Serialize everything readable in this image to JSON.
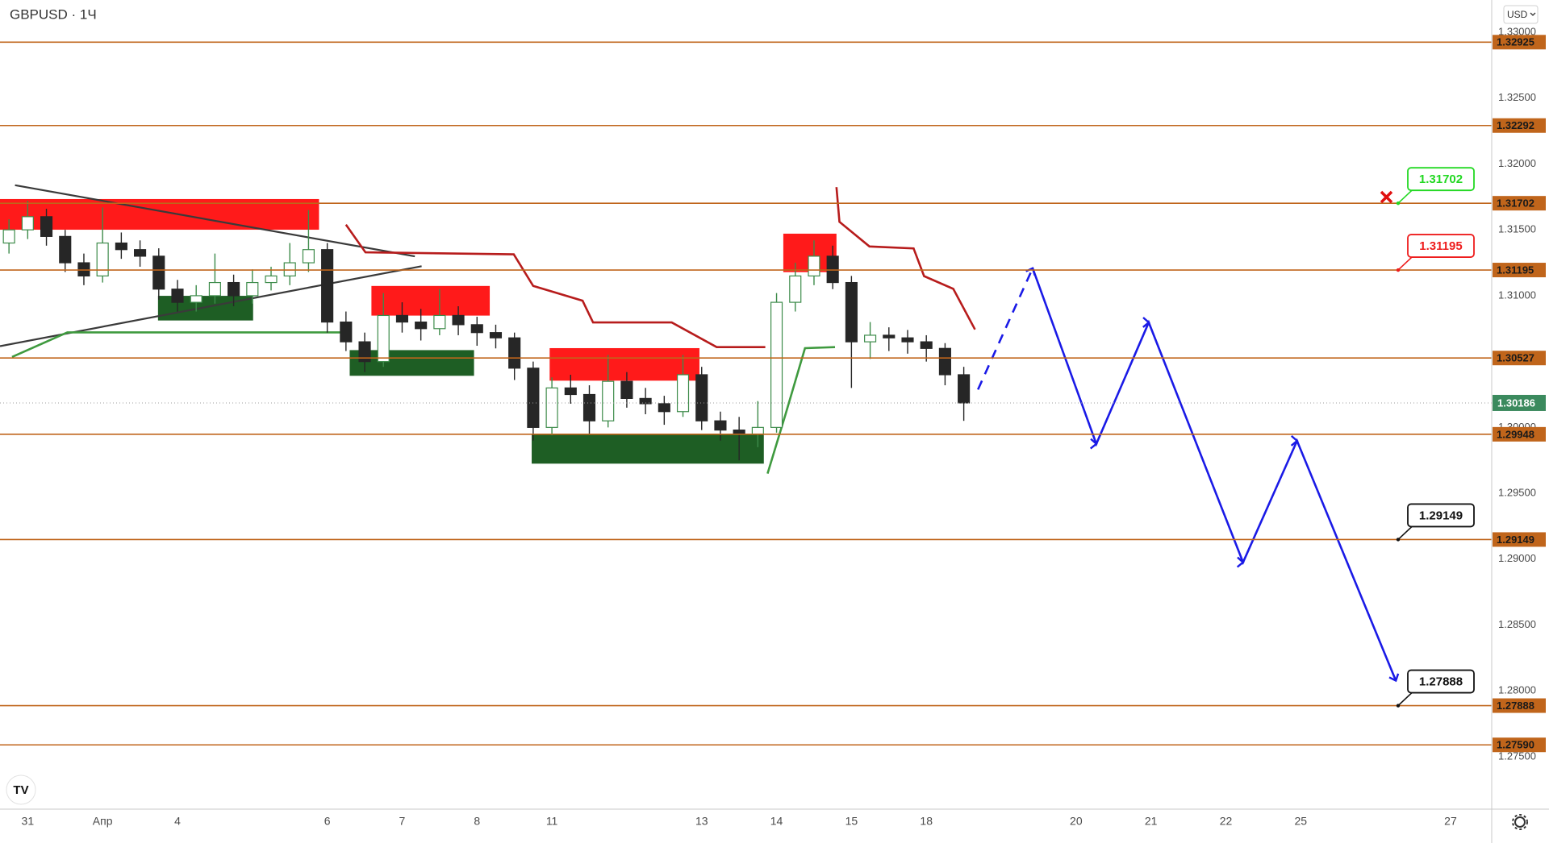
{
  "chart_data": {
    "type": "candlestick",
    "title": "GBPUSD · 1Ч",
    "currency": "USD",
    "up_color": "#3d8b4a",
    "down_color": "#262626",
    "xlim": [
      -0.37,
      19.55
    ],
    "ylim": [
      1.27102,
      1.33245
    ],
    "xticks": [
      {
        "value": 0,
        "label": "31"
      },
      {
        "value": 1,
        "label": "Апр"
      },
      {
        "value": 2,
        "label": "4"
      },
      {
        "value": 4,
        "label": "6"
      },
      {
        "value": 5,
        "label": "7"
      },
      {
        "value": 6,
        "label": "8"
      },
      {
        "value": 7,
        "label": "11"
      },
      {
        "value": 9,
        "label": "13"
      },
      {
        "value": 10,
        "label": "14"
      },
      {
        "value": 11,
        "label": "15"
      },
      {
        "value": 12,
        "label": "18"
      },
      {
        "value": 14,
        "label": "20"
      },
      {
        "value": 15,
        "label": "21"
      },
      {
        "value": 16,
        "label": "22"
      },
      {
        "value": 17,
        "label": "25"
      },
      {
        "value": 19,
        "label": "27"
      }
    ],
    "yticks": [
      {
        "value": 1.275,
        "label": "1.27500"
      },
      {
        "value": 1.28,
        "label": "1.28000"
      },
      {
        "value": 1.285,
        "label": "1.28500"
      },
      {
        "value": 1.29,
        "label": "1.29000"
      },
      {
        "value": 1.295,
        "label": "1.29500"
      },
      {
        "value": 1.3,
        "label": "1.30000"
      },
      {
        "value": 1.305,
        "label": "1.30500"
      },
      {
        "value": 1.31,
        "label": "1.31000"
      },
      {
        "value": 1.315,
        "label": "1.31500"
      },
      {
        "value": 1.32,
        "label": "1.32000"
      },
      {
        "value": 1.325,
        "label": "1.32500"
      },
      {
        "value": 1.33,
        "label": "1.33000"
      }
    ],
    "x": [
      -0.25,
      0,
      0.25,
      0.5,
      0.75,
      1,
      1.25,
      1.5,
      1.75,
      2,
      2.25,
      2.5,
      2.75,
      3,
      3.25,
      3.5,
      3.75,
      4,
      4.25,
      4.5,
      4.75,
      5,
      5.25,
      5.5,
      5.75,
      6,
      6.25,
      6.5,
      6.75,
      7,
      7.25,
      7.5,
      7.75,
      8,
      8.25,
      8.5,
      8.75,
      9,
      9.25,
      9.5,
      9.75,
      10,
      10.25,
      10.5,
      10.75,
      11,
      11.25,
      11.5,
      11.75,
      12,
      12.25,
      12.5
    ],
    "ohlc": [
      [
        1.314,
        1.3158,
        1.3132,
        1.315
      ],
      [
        1.315,
        1.3172,
        1.3143,
        1.316
      ],
      [
        1.316,
        1.3166,
        1.3138,
        1.3145
      ],
      [
        1.3145,
        1.315,
        1.3118,
        1.3125
      ],
      [
        1.3125,
        1.3132,
        1.3108,
        1.3115
      ],
      [
        1.3115,
        1.3167,
        1.311,
        1.314
      ],
      [
        1.314,
        1.3148,
        1.3128,
        1.3135
      ],
      [
        1.3135,
        1.3142,
        1.3122,
        1.313
      ],
      [
        1.313,
        1.3136,
        1.3097,
        1.3105
      ],
      [
        1.3105,
        1.3112,
        1.3088,
        1.3095
      ],
      [
        1.3095,
        1.3108,
        1.3088,
        1.31
      ],
      [
        1.31,
        1.3132,
        1.3094,
        1.311
      ],
      [
        1.311,
        1.3116,
        1.3092,
        1.31
      ],
      [
        1.31,
        1.312,
        1.3094,
        1.311
      ],
      [
        1.311,
        1.3122,
        1.3104,
        1.3115
      ],
      [
        1.3115,
        1.314,
        1.3108,
        1.3125
      ],
      [
        1.3125,
        1.3165,
        1.3118,
        1.3135
      ],
      [
        1.3135,
        1.314,
        1.3072,
        1.308
      ],
      [
        1.308,
        1.3088,
        1.3058,
        1.3065
      ],
      [
        1.3065,
        1.3072,
        1.3042,
        1.305
      ],
      [
        1.305,
        1.3102,
        1.3046,
        1.3085
      ],
      [
        1.3085,
        1.3095,
        1.3072,
        1.308
      ],
      [
        1.308,
        1.309,
        1.3066,
        1.3075
      ],
      [
        1.3075,
        1.3105,
        1.307,
        1.3085
      ],
      [
        1.3085,
        1.3092,
        1.307,
        1.3078
      ],
      [
        1.3078,
        1.3084,
        1.3062,
        1.3072
      ],
      [
        1.3072,
        1.3078,
        1.306,
        1.3068
      ],
      [
        1.3068,
        1.3072,
        1.3036,
        1.3045
      ],
      [
        1.3045,
        1.305,
        1.299,
        1.3
      ],
      [
        1.3,
        1.3038,
        1.2994,
        1.303
      ],
      [
        1.303,
        1.304,
        1.3018,
        1.3025
      ],
      [
        1.3025,
        1.3032,
        1.2995,
        1.3005
      ],
      [
        1.3005,
        1.3055,
        1.3,
        1.3035
      ],
      [
        1.3035,
        1.3042,
        1.3015,
        1.3022
      ],
      [
        1.3022,
        1.303,
        1.301,
        1.3018
      ],
      [
        1.3018,
        1.3024,
        1.3002,
        1.3012
      ],
      [
        1.3012,
        1.3055,
        1.3008,
        1.304
      ],
      [
        1.304,
        1.3046,
        1.2998,
        1.3005
      ],
      [
        1.3005,
        1.3012,
        1.299,
        1.2998
      ],
      [
        1.2998,
        1.3008,
        1.2975,
        1.2995
      ],
      [
        1.2995,
        1.302,
        1.2985,
        1.3
      ],
      [
        1.3,
        1.3102,
        1.2996,
        1.3095
      ],
      [
        1.3095,
        1.3125,
        1.3088,
        1.3115
      ],
      [
        1.3115,
        1.3142,
        1.3108,
        1.313
      ],
      [
        1.313,
        1.3138,
        1.3105,
        1.311
      ],
      [
        1.311,
        1.3115,
        1.303,
        1.3065
      ],
      [
        1.3065,
        1.308,
        1.3052,
        1.307
      ],
      [
        1.307,
        1.3076,
        1.3058,
        1.3068
      ],
      [
        1.3068,
        1.3074,
        1.3056,
        1.3065
      ],
      [
        1.3065,
        1.307,
        1.305,
        1.306
      ],
      [
        1.306,
        1.3064,
        1.3032,
        1.304
      ],
      [
        1.304,
        1.3046,
        1.3005,
        1.30186
      ]
    ],
    "zones": [
      {
        "color": "#ff1a1a",
        "x0": -0.37,
        "x1": 3.89,
        "y0": 1.31734,
        "y1": 1.31501
      },
      {
        "color": "#1e5e24",
        "x0": 1.74,
        "x1": 3.01,
        "y0": 1.30999,
        "y1": 1.30812
      },
      {
        "color": "#ff1a1a",
        "x0": 4.59,
        "x1": 6.17,
        "y0": 1.31074,
        "y1": 1.30849
      },
      {
        "color": "#1e5e24",
        "x0": 4.3,
        "x1": 5.96,
        "y0": 1.30587,
        "y1": 1.30392
      },
      {
        "color": "#ff1a1a",
        "x0": 6.97,
        "x1": 8.97,
        "y0": 1.30602,
        "y1": 1.30355
      },
      {
        "color": "#1e5e24",
        "x0": 6.73,
        "x1": 9.83,
        "y0": 1.2995,
        "y1": 1.29725
      },
      {
        "color": "#ff1a1a",
        "x0": 10.09,
        "x1": 10.8,
        "y0": 1.31471,
        "y1": 1.31179
      }
    ],
    "trendlines": [
      {
        "color": "#3a3a3a",
        "x": [
          -0.17,
          5.17
        ],
        "values": [
          1.31839,
          1.31299
        ]
      },
      {
        "color": "#3a3a3a",
        "x": [
          -0.37,
          5.26
        ],
        "values": [
          1.30617,
          1.31224
        ]
      }
    ],
    "series": [
      {
        "color": "#b71c1c",
        "x": [
          4.25,
          4.51,
          6.49,
          6.75,
          7.41,
          7.55,
          8.6,
          9.2,
          9.85,
          null,
          10.8,
          10.84,
          11.24,
          11.83,
          11.97,
          12.36,
          12.65
        ],
        "values": [
          1.31539,
          1.31329,
          1.31314,
          1.31074,
          1.30962,
          1.30797,
          1.30797,
          1.3061,
          1.3061,
          null,
          1.31824,
          1.31561,
          1.31374,
          1.31359,
          1.31149,
          1.31052,
          1.30744
        ]
      },
      {
        "color": "#3f9a3f",
        "x": [
          -0.21,
          0.53,
          4.25,
          null,
          9.88,
          10.12,
          10.38,
          10.78
        ],
        "values": [
          1.30535,
          1.30722,
          1.30722,
          null,
          1.2965,
          1.301,
          1.30602,
          1.3061
        ]
      }
    ],
    "projection": {
      "color": "#1a1ae6",
      "x": [
        12.69,
        13.42,
        14.27,
        14.97,
        16.23,
        16.95,
        18.27
      ],
      "values": [
        1.30287,
        1.31209,
        1.29875,
        1.30797,
        1.28976,
        1.29898,
        1.28077
      ]
    },
    "level_color": "#c0651b",
    "levels": [
      1.32925,
      1.32292,
      1.31702,
      1.31195,
      1.30527,
      1.29948,
      1.29149,
      1.27888,
      {
        "value": 1.2759,
        "label": "1.27590"
      }
    ],
    "last_price": 1.30186,
    "last_color": "#3b8a5e",
    "callouts": [
      {
        "value": 1.31702,
        "color": "#22d822"
      },
      {
        "value": 1.31195,
        "color": "#ee1c1c"
      },
      {
        "value": 1.29149,
        "color": "#111111"
      },
      {
        "value": 1.27888,
        "color": "#111111"
      }
    ]
  }
}
